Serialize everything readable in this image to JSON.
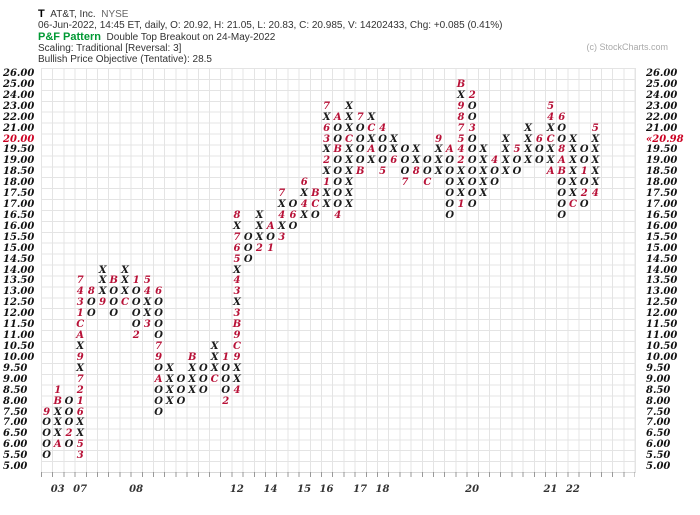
{
  "header": {
    "symbol": "T",
    "company": "AT&T, Inc.",
    "exchange": "NYSE",
    "quote_line": "06-Jun-2022, 14:45 ET, daily, O: 20.92, H: 21.05, L: 20.83, C: 20.985, V: 14202433, Chg: +0.085 (0.41%)",
    "pattern_label": "P&F Pattern",
    "pattern_value": "Double Top Breakout on 24-May-2022",
    "scaling_line": "Scaling: Traditional [Reversal: 3]",
    "objective_line": "Bullish Price Objective (Tentative): 28.5",
    "copyright": "(c) StockCharts.com"
  },
  "chart_data": {
    "type": "point_and_figure",
    "title": "AT&T, Inc. (T) NYSE P&F",
    "box_scaling": "Traditional (0.50 box from 5.00-20.00, 1.00 box above 20.00)",
    "reversal": 3,
    "ylim": [
      5.0,
      26.0
    ],
    "grid": "on",
    "price_rows": [
      26,
      25,
      24,
      23,
      22,
      21,
      20,
      19.5,
      19,
      18.5,
      18,
      17.5,
      17,
      16.5,
      16,
      15.5,
      15,
      14.5,
      14,
      13.5,
      13,
      12.5,
      12,
      11.5,
      11,
      10.5,
      10,
      9.5,
      9,
      8.5,
      8,
      7.5,
      7,
      6.5,
      6,
      5.5,
      5
    ],
    "left_axis_red_row": "20.00",
    "current_price_marker": {
      "row": 20,
      "text": "«20.98",
      "color": "#cc0022"
    },
    "month_color": "#b81137",
    "symbol_color": "#1a1a1a",
    "year_labels": [
      {
        "col": 2,
        "text": "03"
      },
      {
        "col": 4,
        "text": "07"
      },
      {
        "col": 9,
        "text": "08"
      },
      {
        "col": 18,
        "text": "12"
      },
      {
        "col": 21,
        "text": "14"
      },
      {
        "col": 24,
        "text": "15"
      },
      {
        "col": 26,
        "text": "16"
      },
      {
        "col": 29,
        "text": "17"
      },
      {
        "col": 31,
        "text": "18"
      },
      {
        "col": 39,
        "text": "20"
      },
      {
        "col": 46,
        "text": "21"
      },
      {
        "col": 48,
        "text": "22"
      }
    ],
    "columns": [
      {
        "type": "O",
        "cells": [
          "7.5:9",
          "7:O",
          "6.5:O",
          "6:O",
          "5.5:O"
        ]
      },
      {
        "type": "X",
        "cells": [
          "6:A",
          "6.5:X",
          "7:X",
          "7.5:X",
          "8:B",
          "8.5:1"
        ]
      },
      {
        "type": "O",
        "cells": [
          "8:O",
          "7.5:O",
          "7:O",
          "6.5:2",
          "6:O"
        ]
      },
      {
        "type": "X",
        "cells": [
          "5.5:3",
          "6:5",
          "6.5:X",
          "7:X",
          "7.5:6",
          "8:1",
          "8.5:2",
          "9:7",
          "9.5:X",
          "10:9",
          "10.5:X",
          "11:A",
          "11.5:C",
          "12:1",
          "12.5:3",
          "13:4",
          "13.5:7"
        ]
      },
      {
        "type": "O",
        "cells": [
          "13:8",
          "12.5:O",
          "12:O"
        ]
      },
      {
        "type": "X",
        "cells": [
          "12.5:9",
          "13:X",
          "13.5:X",
          "14:X"
        ]
      },
      {
        "type": "O",
        "cells": [
          "13.5:B",
          "13:O",
          "12.5:O",
          "12:O"
        ]
      },
      {
        "type": "X",
        "cells": [
          "12.5:C",
          "13:X",
          "13.5:X",
          "14:X"
        ]
      },
      {
        "type": "O",
        "cells": [
          "13.5:1",
          "13:O",
          "12.5:O",
          "12:O",
          "11.5:O",
          "11:2"
        ]
      },
      {
        "type": "X",
        "cells": [
          "11.5:3",
          "12:X",
          "12.5:X",
          "13:4",
          "13.5:5"
        ]
      },
      {
        "type": "O",
        "cells": [
          "13:6",
          "12.5:O",
          "12:O",
          "11.5:O",
          "11:O",
          "10.5:7",
          "10:9",
          "9.5:O",
          "9:A",
          "8.5:O",
          "8:O",
          "7.5:O"
        ]
      },
      {
        "type": "X",
        "cells": [
          "8:X",
          "8.5:X",
          "9:X",
          "9.5:X"
        ]
      },
      {
        "type": "O",
        "cells": [
          "9:O",
          "8.5:O",
          "8:O"
        ]
      },
      {
        "type": "X",
        "cells": [
          "8.5:X",
          "9:X",
          "9.5:X",
          "10:B"
        ]
      },
      {
        "type": "O",
        "cells": [
          "9.5:O",
          "9:O",
          "8.5:O"
        ]
      },
      {
        "type": "X",
        "cells": [
          "9:C",
          "9.5:X",
          "10:X",
          "10.5:X"
        ]
      },
      {
        "type": "O",
        "cells": [
          "10:1",
          "9.5:O",
          "9:O",
          "8.5:O",
          "8:2"
        ]
      },
      {
        "type": "X",
        "cells": [
          "8.5:4",
          "9:X",
          "9.5:X",
          "10:9",
          "10.5:C",
          "11:9",
          "11.5:B",
          "12:3",
          "12.5:X",
          "13:3",
          "13.5:4",
          "14:X",
          "14.5:5",
          "15:6",
          "15.5:7",
          "16:X",
          "16.5:8"
        ]
      },
      {
        "type": "O",
        "cells": [
          "15.5:O",
          "15:O",
          "14.5:O"
        ]
      },
      {
        "type": "X",
        "cells": [
          "15:2",
          "15.5:X",
          "16:X",
          "16.5:X"
        ]
      },
      {
        "type": "O",
        "cells": [
          "16:A",
          "15.5:O",
          "15:1"
        ]
      },
      {
        "type": "X",
        "cells": [
          "15.5:3",
          "16:X",
          "16.5:4",
          "17:X",
          "17.5:7"
        ]
      },
      {
        "type": "O",
        "cells": [
          "17:O",
          "16.5:6",
          "16:O"
        ]
      },
      {
        "type": "X",
        "cells": [
          "16.5:X",
          "17:4",
          "17.5:X",
          "18:6"
        ]
      },
      {
        "type": "O",
        "cells": [
          "17.5:B",
          "17:C",
          "16.5:O"
        ]
      },
      {
        "type": "X",
        "cells": [
          "17:X",
          "17.5:X",
          "18:1",
          "18.5:X",
          "19:2",
          "19.5:X",
          "20:3",
          "21:6",
          "22:X",
          "23:7"
        ]
      },
      {
        "type": "O",
        "cells": [
          "22:A",
          "21:O",
          "20:O",
          "19.5:B",
          "19:O",
          "18.5:O",
          "18:O",
          "17.5:O",
          "17:O",
          "16.5:4"
        ]
      },
      {
        "type": "X",
        "cells": [
          "17:X",
          "17.5:X",
          "18:X",
          "18.5:X",
          "19:X",
          "19.5:X",
          "20:C",
          "21:X",
          "22:X",
          "23:X"
        ]
      },
      {
        "type": "O",
        "cells": [
          "22:7",
          "21:O",
          "20:O",
          "19.5:O",
          "19:O",
          "18.5:B"
        ]
      },
      {
        "type": "X",
        "cells": [
          "19:X",
          "19.5:A",
          "20:X",
          "21:C",
          "22:X"
        ]
      },
      {
        "type": "O",
        "cells": [
          "21:4",
          "20:O",
          "19.5:O",
          "19:O",
          "18.5:5"
        ]
      },
      {
        "type": "X",
        "cells": [
          "19:6",
          "19.5:X",
          "20:X"
        ]
      },
      {
        "type": "O",
        "cells": [
          "19.5:O",
          "19:O",
          "18.5:O",
          "18:7"
        ]
      },
      {
        "type": "X",
        "cells": [
          "18.5:8",
          "19:X",
          "19.5:X"
        ]
      },
      {
        "type": "O",
        "cells": [
          "19:O",
          "18.5:O",
          "18:C"
        ]
      },
      {
        "type": "X",
        "cells": [
          "18.5:X",
          "19:X",
          "19.5:X",
          "20:9"
        ]
      },
      {
        "type": "O",
        "cells": [
          "19.5:A",
          "19:O",
          "18.5:O",
          "18:O",
          "17.5:O",
          "17:O",
          "16.5:O"
        ]
      },
      {
        "type": "X",
        "cells": [
          "17:1",
          "17.5:X",
          "18:X",
          "18.5:X",
          "19:2",
          "19.5:4",
          "20:5",
          "21:7",
          "22:8",
          "23:9",
          "24:X",
          "25:B"
        ]
      },
      {
        "type": "O",
        "cells": [
          "24:2",
          "23:O",
          "22:O",
          "21:3",
          "20:O",
          "19.5:O",
          "19:O",
          "18.5:O",
          "18:O",
          "17.5:O",
          "17:O"
        ]
      },
      {
        "type": "X",
        "cells": [
          "17.5:X",
          "18:X",
          "18.5:X",
          "19:X",
          "19.5:X"
        ]
      },
      {
        "type": "O",
        "cells": [
          "19:4",
          "18.5:O",
          "18:O"
        ]
      },
      {
        "type": "X",
        "cells": [
          "18.5:X",
          "19:X",
          "19.5:X",
          "20:X"
        ]
      },
      {
        "type": "O",
        "cells": [
          "19.5:5",
          "19:O",
          "18.5:O"
        ]
      },
      {
        "type": "X",
        "cells": [
          "19:X",
          "19.5:X",
          "20:X",
          "21:X"
        ]
      },
      {
        "type": "O",
        "cells": [
          "20:6",
          "19.5:O",
          "19:O"
        ]
      },
      {
        "type": "X",
        "cells": [
          "18.5:A",
          "19:X",
          "19.5:X",
          "20:C",
          "21:X",
          "22:4",
          "23:5"
        ]
      },
      {
        "type": "O",
        "cells": [
          "22:6",
          "21:O",
          "20:O",
          "19.5:8",
          "19:A",
          "18.5:B",
          "18:O",
          "17.5:O",
          "17:O",
          "16.5:O"
        ]
      },
      {
        "type": "X",
        "cells": [
          "17:C",
          "17.5:X",
          "18:X",
          "18.5:X",
          "19:X",
          "19.5:X",
          "20:X"
        ]
      },
      {
        "type": "O",
        "cells": [
          "19.5:O",
          "19:O",
          "18.5:1",
          "18:O",
          "17.5:2",
          "17:O"
        ]
      },
      {
        "type": "X",
        "cells": [
          "17.5:4",
          "18:X",
          "18.5:X",
          "19:X",
          "19.5:X",
          "20:X",
          "21:5"
        ]
      }
    ],
    "layout": {
      "grid_left": 41,
      "grid_top": 68,
      "col_width": 11.2,
      "row_height": 10.92,
      "n_rows": 37,
      "n_cols": 53,
      "right_axis_x": 646,
      "year_label_y": 484
    }
  }
}
